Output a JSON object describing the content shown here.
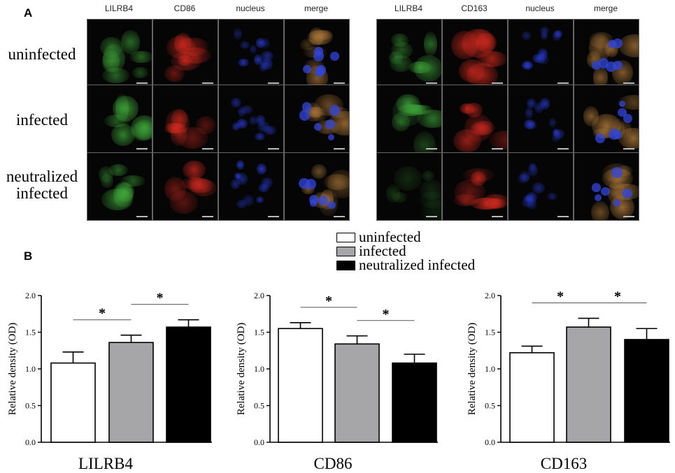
{
  "panel_a": {
    "letter": "A",
    "row_labels": [
      "uninfected",
      "infected",
      "neutralized infected"
    ],
    "groups": [
      {
        "columns": [
          "LILRB4",
          "CD86",
          "nucleus",
          "merge"
        ],
        "channel_colors": [
          "#3fa83a",
          "#d62a1e",
          "#2a3ee0",
          "#b07a3a"
        ]
      },
      {
        "columns": [
          "LILRB4",
          "CD163",
          "nucleus",
          "merge"
        ],
        "channel_colors": [
          "#3fa83a",
          "#d62a1e",
          "#2a3ee0",
          "#b07a3a"
        ]
      }
    ]
  },
  "panel_b": {
    "letter": "B",
    "legend": [
      {
        "label": "uninfected",
        "color": "#ffffff"
      },
      {
        "label": "infected",
        "color": "#a6a6a8"
      },
      {
        "label": "neutralized infected",
        "color": "#000000"
      }
    ]
  },
  "chart_data": [
    {
      "type": "bar",
      "title": "LILRB4",
      "ylabel": "Relative density (OD)",
      "ylim": [
        0,
        2.0
      ],
      "yticks": [
        "0.0",
        "0.5",
        "1.0",
        "1.5",
        "2.0"
      ],
      "categories": [
        "uninfected",
        "infected",
        "neutralized infected"
      ],
      "values": [
        1.08,
        1.36,
        1.57
      ],
      "errors": [
        0.15,
        0.1,
        0.1
      ],
      "colors": [
        "#ffffff",
        "#a6a6a8",
        "#000000"
      ],
      "significance": [
        {
          "from": 0,
          "to": 1,
          "label": "*"
        },
        {
          "from": 1,
          "to": 2,
          "label": "*"
        }
      ]
    },
    {
      "type": "bar",
      "title": "CD86",
      "ylabel": "Relative density (OD)",
      "ylim": [
        0,
        2.0
      ],
      "yticks": [
        "0.0",
        "0.5",
        "1.0",
        "1.5",
        "2.0"
      ],
      "categories": [
        "uninfected",
        "infected",
        "neutralized infected"
      ],
      "values": [
        1.55,
        1.34,
        1.08
      ],
      "errors": [
        0.08,
        0.11,
        0.12
      ],
      "colors": [
        "#ffffff",
        "#a6a6a8",
        "#000000"
      ],
      "significance": [
        {
          "from": 0,
          "to": 1,
          "label": "*"
        },
        {
          "from": 1,
          "to": 2,
          "label": "*"
        }
      ]
    },
    {
      "type": "bar",
      "title": "CD163",
      "ylabel": "Relative density (OD)",
      "ylim": [
        0,
        2.0
      ],
      "yticks": [
        "0.0",
        "0.5",
        "1.0",
        "1.5",
        "2.0"
      ],
      "categories": [
        "uninfected",
        "infected",
        "neutralized infected"
      ],
      "values": [
        1.22,
        1.57,
        1.4
      ],
      "errors": [
        0.09,
        0.12,
        0.15
      ],
      "colors": [
        "#ffffff",
        "#a6a6a8",
        "#000000"
      ],
      "significance": [
        {
          "from": 0,
          "to": 1,
          "label": "*"
        },
        {
          "from": 1,
          "to": 2,
          "label": "*"
        }
      ]
    }
  ]
}
